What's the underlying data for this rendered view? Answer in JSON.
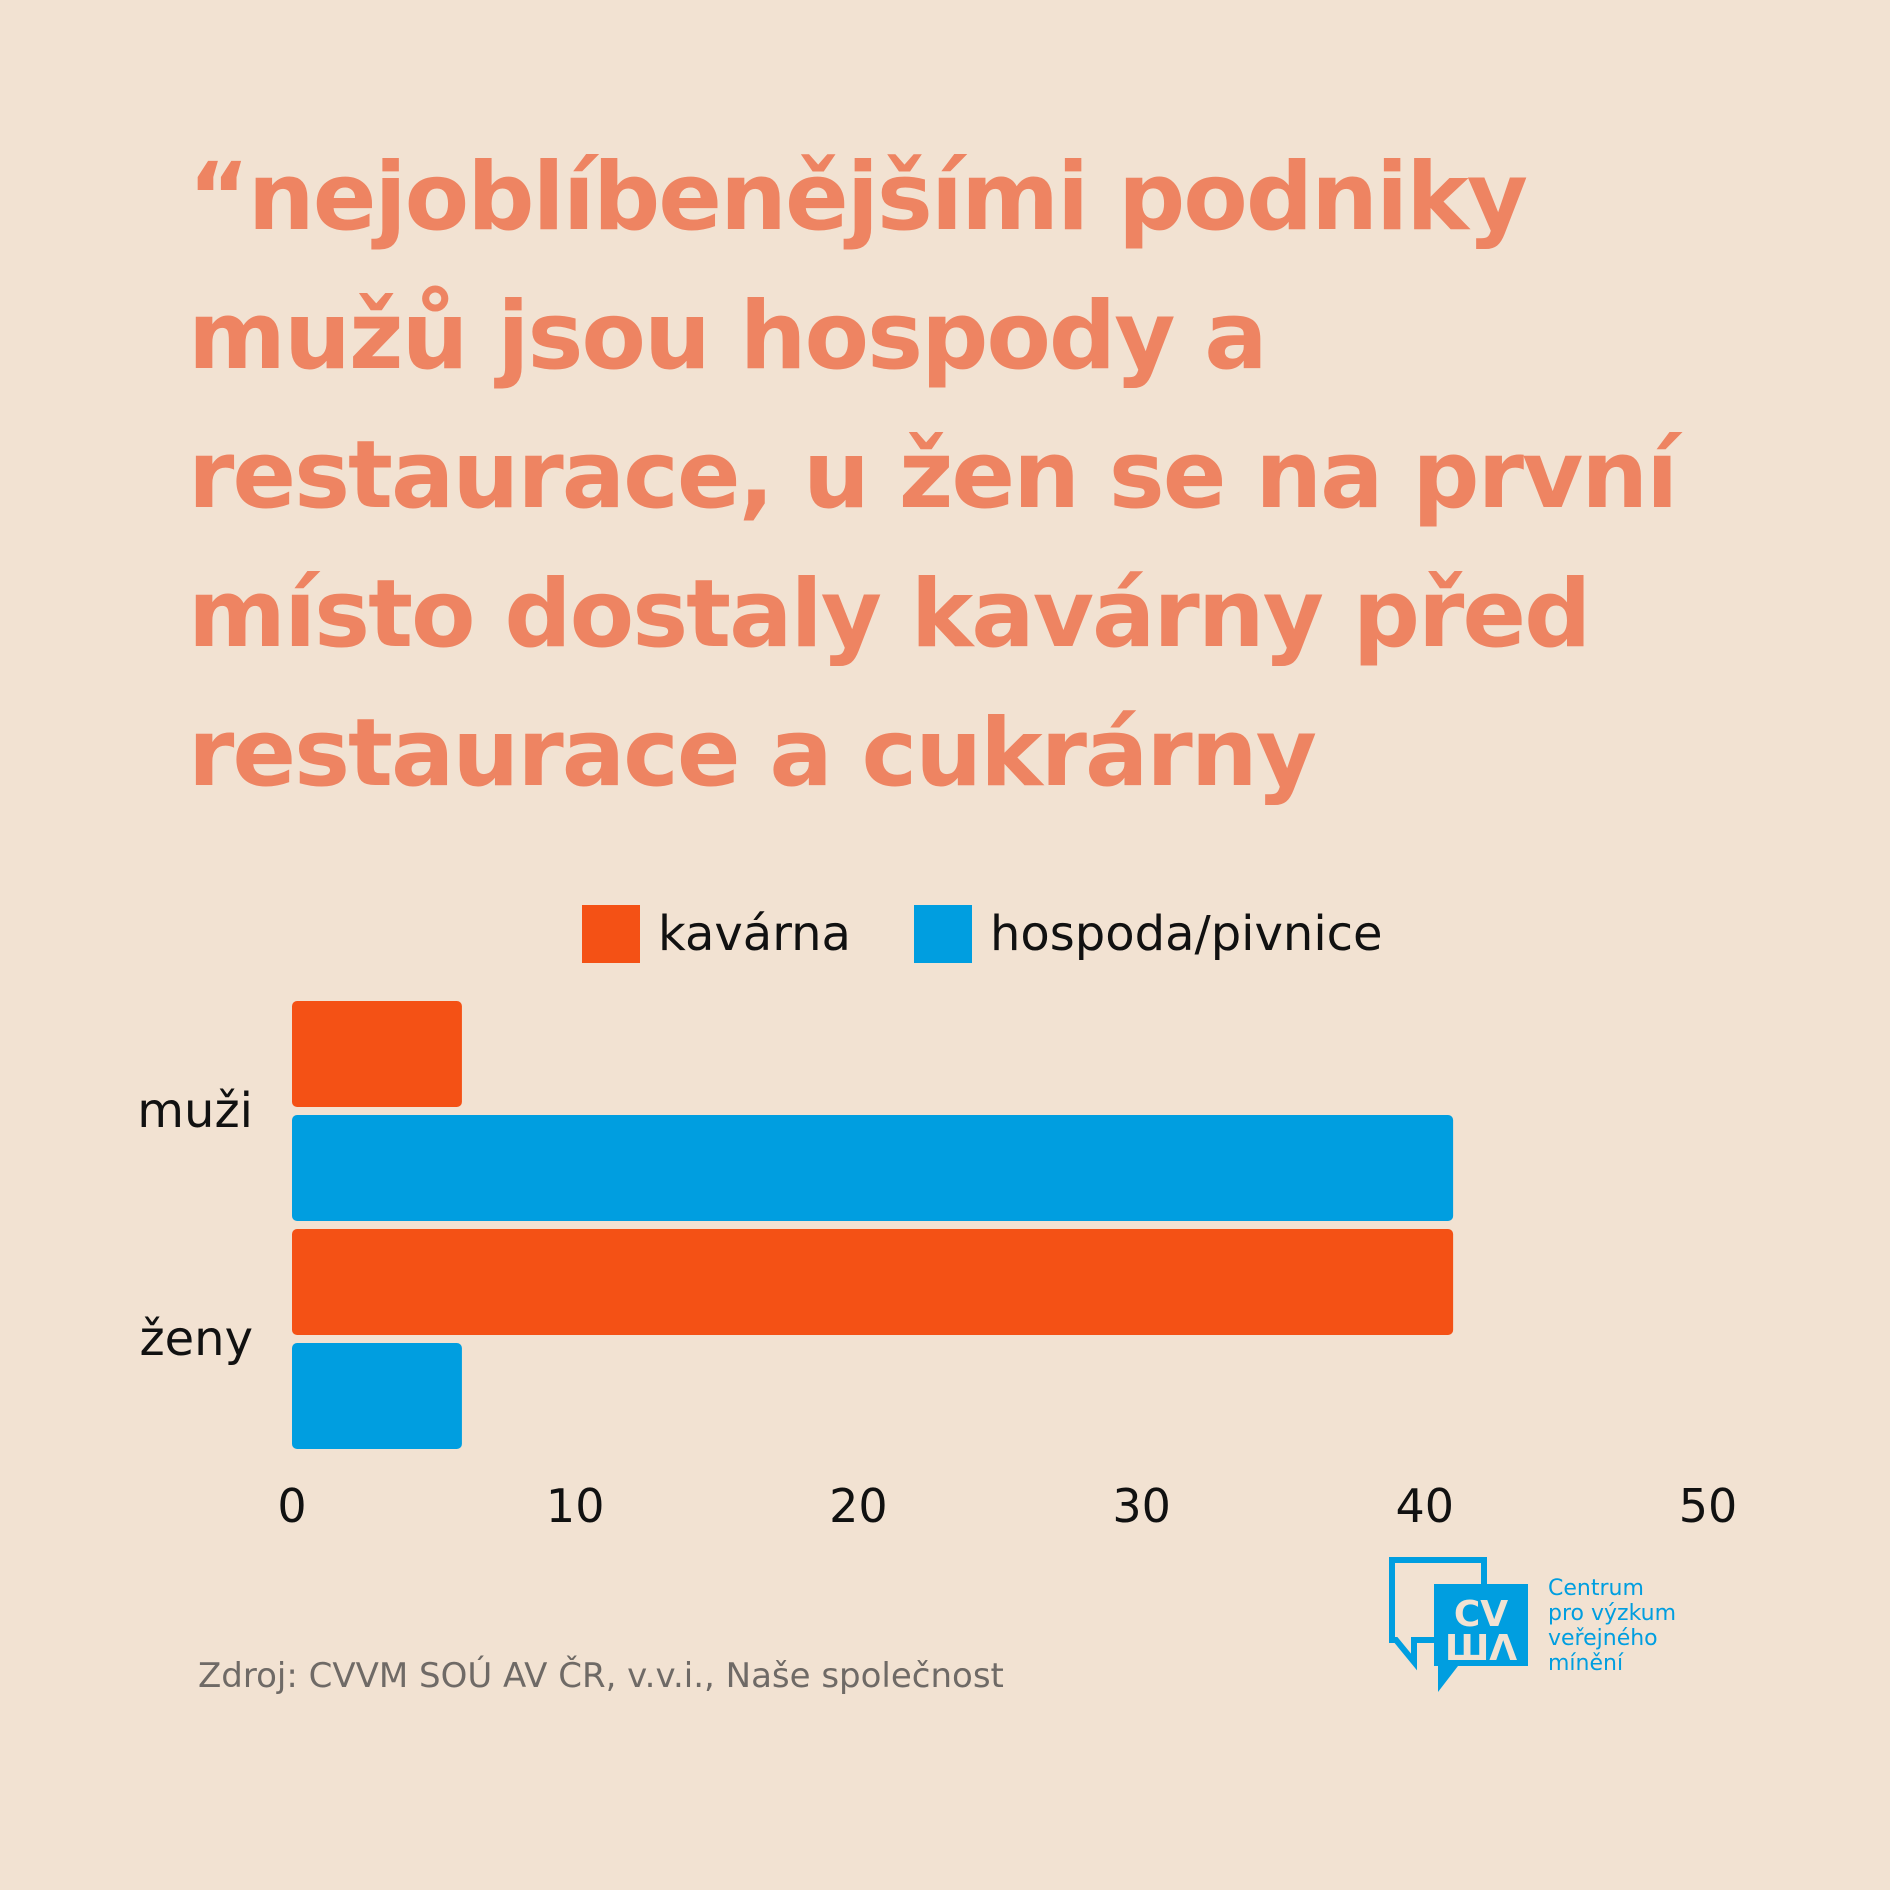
{
  "headline": "“nejoblíbenějšími podniky\nmužů jsou hospody a\nrestaurace, u žen se na první\nmísto dostaly kavárny před\nrestaurace a cukrárny",
  "source": "Zdroj: CVVM SOÚ AV ČR, v.v.i., Naše společnost",
  "logo": {
    "lines": [
      "Centrum",
      "pro výzkum",
      "veřejného",
      "mínění"
    ],
    "icon": "cvvm-speech-bubble-logo",
    "color": "#009ee0"
  },
  "chart_data": {
    "type": "bar",
    "orientation": "horizontal",
    "categories": [
      "muži",
      "ženy"
    ],
    "series": [
      {
        "name": "kavárna",
        "color": "#f45115",
        "values": [
          6,
          41
        ]
      },
      {
        "name": "hospoda/pivnice",
        "color": "#009ee0",
        "values": [
          41,
          6
        ]
      }
    ],
    "xlim": [
      0,
      50
    ],
    "xticks": [
      "0",
      "10",
      "20",
      "30",
      "40",
      "50"
    ],
    "grid": false,
    "legend": "top"
  }
}
